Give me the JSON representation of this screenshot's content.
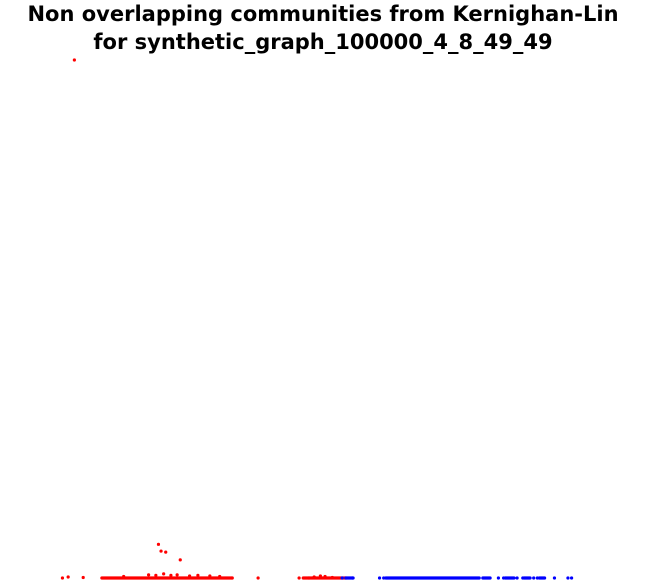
{
  "chart_data": {
    "type": "scatter",
    "title_lines": [
      "Non overlapping communities from Kernighan-Lin",
      "for synthetic_graph_100000_4_8_49_49"
    ],
    "xlabel": "",
    "ylabel": "",
    "axes_visible": false,
    "grid": false,
    "legend": "none",
    "xlim": [
      0,
      100
    ],
    "ylim": [
      0,
      100
    ],
    "point_radius": 1.6,
    "colors": {
      "community_1": "#ff0000",
      "community_2": "#0000ff"
    },
    "series": [
      {
        "color": "#ff0000",
        "points": [
          [
            2.0,
            100.0
          ],
          [
            -0.3,
            0.0
          ],
          [
            0.8,
            0.2
          ],
          [
            3.7,
            0.1
          ],
          [
            18.2,
            6.5
          ],
          [
            18.7,
            5.2
          ],
          [
            19.6,
            5.0
          ],
          [
            22.4,
            3.5
          ],
          [
            16.3,
            0.6
          ],
          [
            17.7,
            0.5
          ],
          [
            19.2,
            0.8
          ],
          [
            20.6,
            0.5
          ],
          [
            21.8,
            0.6
          ],
          [
            24.2,
            0.4
          ],
          [
            25.8,
            0.5
          ],
          [
            28.1,
            0.4
          ],
          [
            30.0,
            0.3
          ],
          [
            11.5,
            0.3
          ],
          [
            32.4,
            0.0
          ],
          [
            37.4,
            0.0
          ],
          [
            45.3,
            0.0
          ],
          [
            47.2,
            0.0
          ],
          [
            48.2,
            0.2
          ],
          [
            49.4,
            0.4
          ],
          [
            50.3,
            0.3
          ],
          [
            51.7,
            0.1
          ]
        ],
        "segments": [
          [
            7.3,
            32.4,
            0.0
          ],
          [
            46.1,
            54.3,
            0.0
          ]
        ]
      },
      {
        "color": "#0000ff",
        "points": [
          [
            53.6,
            0.0
          ],
          [
            54.3,
            0.0
          ],
          [
            55.6,
            0.0
          ],
          [
            60.8,
            0.0
          ],
          [
            61.6,
            0.0
          ],
          [
            83.7,
            0.0
          ],
          [
            84.7,
            0.0
          ],
          [
            87.3,
            0.0
          ],
          [
            88.4,
            0.0
          ],
          [
            90.5,
            0.0
          ],
          [
            91.2,
            0.0
          ],
          [
            94.5,
            0.0
          ],
          [
            97.1,
            0.0
          ],
          [
            97.8,
            0.0
          ]
        ],
        "segments": [
          [
            54.4,
            55.7,
            0.0
          ],
          [
            62.0,
            80.0,
            0.0
          ],
          [
            80.7,
            82.1,
            0.0
          ],
          [
            85.0,
            86.7,
            0.0
          ],
          [
            88.6,
            89.8,
            0.0
          ],
          [
            91.6,
            92.6,
            0.0
          ]
        ]
      }
    ]
  }
}
